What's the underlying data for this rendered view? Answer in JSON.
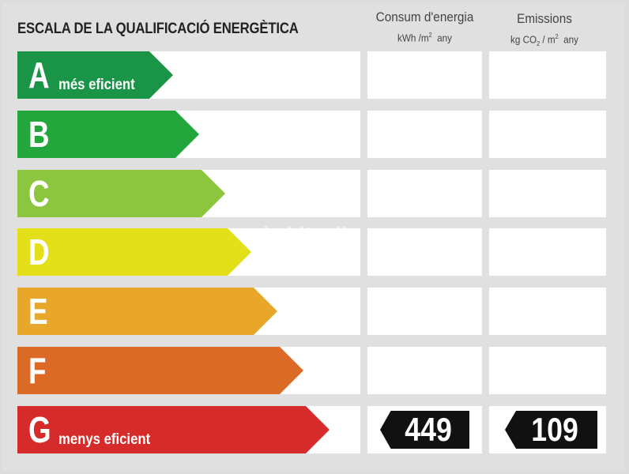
{
  "title": "ESCALA DE LA QUALIFICACIÓ ENERGÈTICA",
  "columns": {
    "consumption": {
      "title": "Consum d'energia",
      "unit_prefix": "kWh /m",
      "unit_sup": "2",
      "unit_suffix": "any"
    },
    "emissions": {
      "title": "Emissions",
      "unit_prefix": "kg CO",
      "unit_sub": "2",
      "unit_mid": " / m",
      "unit_sup": "2",
      "unit_suffix": "any"
    }
  },
  "ratings": [
    {
      "letter": "A",
      "text": "més eficient",
      "color": "#1a9547",
      "bar_fraction": 0.454
    },
    {
      "letter": "B",
      "text": "",
      "color": "#23a63c",
      "bar_fraction": 0.53
    },
    {
      "letter": "C",
      "text": "",
      "color": "#8cc63e",
      "bar_fraction": 0.606
    },
    {
      "letter": "D",
      "text": "",
      "color": "#e3e01a",
      "bar_fraction": 0.682
    },
    {
      "letter": "E",
      "text": "",
      "color": "#e8a72a",
      "bar_fraction": 0.758
    },
    {
      "letter": "F",
      "text": "",
      "color": "#dc6a27",
      "bar_fraction": 0.834
    },
    {
      "letter": "G",
      "text": "menys eficient",
      "color": "#d52b2a",
      "bar_fraction": 0.91
    }
  ],
  "result": {
    "rating": "G",
    "consumption": "449",
    "emissions": "109"
  },
  "watermark": "habitaclia"
}
